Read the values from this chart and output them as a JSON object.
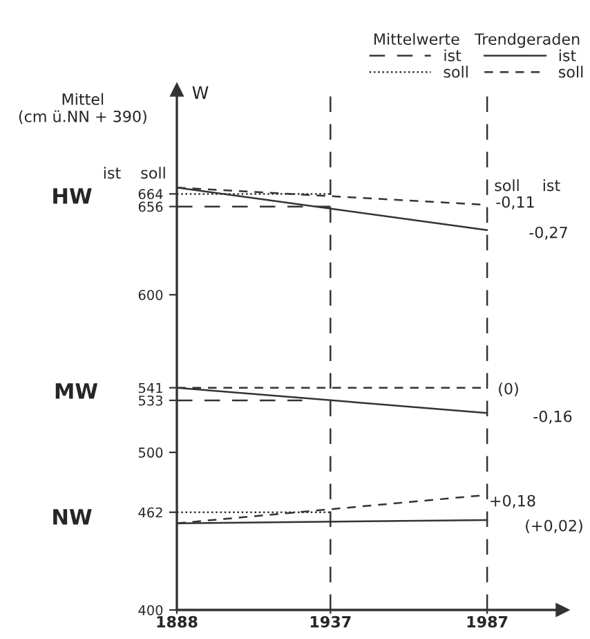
{
  "chart_data": {
    "type": "line",
    "ylabel": "Mittel\n(cm ü.NN + 390)",
    "legend_title": "Mittelwerte   Trendgeraden",
    "xlim": [
      1888,
      2011
    ],
    "xticks": [
      1888,
      1937,
      1987
    ],
    "ylim": [
      400,
      730
    ],
    "yticks": [
      400,
      462,
      500,
      533,
      541,
      600,
      656,
      664
    ],
    "grid": false,
    "legend": "top right",
    "marker": "none",
    "series": [
      {
        "name": "ist",
        "color": "#333333",
        "line_style": "dashed",
        "x": [
          1888,
          1937
        ],
        "values": [
          656,
          656
        ]
      },
      {
        "name": "soll",
        "color": "#333333",
        "line_style": "dotted",
        "x": [
          1888,
          1937
        ],
        "values": [
          664,
          664
        ]
      },
      {
        "name": "ist",
        "color": "#333333",
        "line_style": "solid",
        "x": [
          1888,
          1987
        ],
        "values": [
          668,
          641
        ]
      },
      {
        "name": "soll",
        "color": "#333333",
        "line_style": "dashed",
        "x": [
          1888,
          1987
        ],
        "values": [
          668,
          657
        ]
      },
      {
        "color": "#333333",
        "line_style": "dashed",
        "x": [
          1888,
          1928
        ],
        "values": [
          533,
          533
        ]
      },
      {
        "color": "#333333",
        "line_style": "solid",
        "x": [
          1888,
          1987
        ],
        "values": [
          541,
          525
        ]
      },
      {
        "color": "#333333",
        "line_style": "dashed",
        "x": [
          1888,
          1987
        ],
        "values": [
          541,
          541
        ]
      },
      {
        "color": "#333333",
        "line_style": "dotted",
        "x": [
          1888,
          1937
        ],
        "values": [
          462,
          462
        ]
      },
      {
        "color": "#333333",
        "line_style": "solid",
        "x": [
          1888,
          1987
        ],
        "values": [
          455,
          457
        ]
      },
      {
        "color": "#333333",
        "line_style": "dashed",
        "x": [
          1888,
          1987
        ],
        "values": [
          455,
          473
        ]
      }
    ],
    "ref_lines": [
      {
        "axis": "x",
        "value": 1937,
        "color": "#333333",
        "line_style": "dashed"
      },
      {
        "axis": "x",
        "value": 1987,
        "color": "#333333",
        "line_style": "dashed"
      }
    ],
    "annotations": [
      "-0,11",
      "-0,27",
      "(0)",
      "-0,16",
      "+0,18",
      "(+0,02)",
      "HW",
      "MW",
      "NW",
      "ist",
      "soll",
      "soll",
      "ist",
      "W"
    ]
  }
}
